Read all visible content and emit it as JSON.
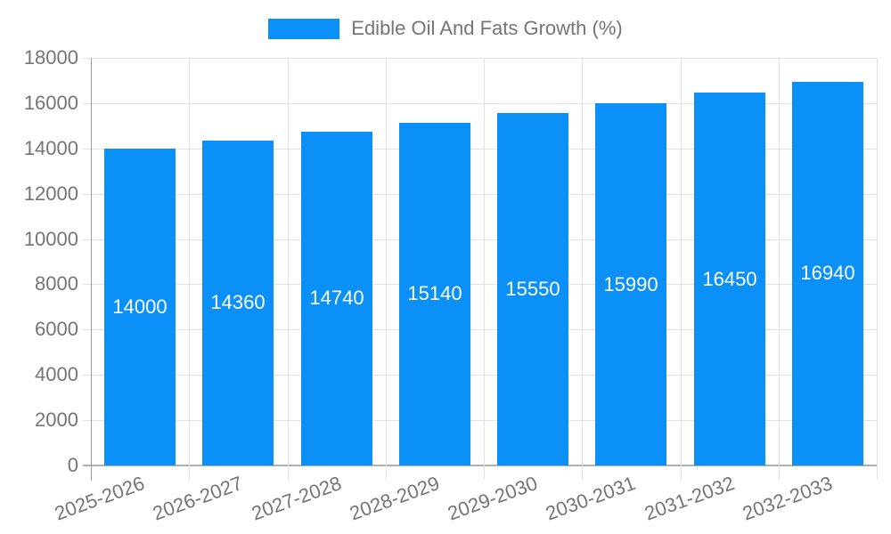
{
  "chart_data": {
    "type": "bar",
    "title": "Edible Oil And Fats Growth (%)",
    "legend": {
      "label": "Edible Oil And Fats Growth (%)",
      "position": "top-center"
    },
    "categories": [
      "2025-2026",
      "2026-2027",
      "2027-2028",
      "2028-2029",
      "2029-2030",
      "2030-2031",
      "2031-2032",
      "2032-2033"
    ],
    "series": [
      {
        "name": "Edible Oil And Fats Growth (%)",
        "values": [
          14000,
          14360,
          14740,
          15140,
          15550,
          15990,
          16450,
          16940
        ]
      }
    ],
    "value_labels_shown": true,
    "xlabel": "",
    "ylabel": "",
    "ylim": [
      0,
      18000
    ],
    "yticks": [
      0,
      2000,
      4000,
      6000,
      8000,
      10000,
      12000,
      14000,
      16000,
      18000
    ],
    "grid": "both",
    "x_tick_rotation_deg": -20,
    "colors": {
      "bar": "#0a90f6",
      "grid": "#e2e2e2",
      "axis": "#9e9e9e",
      "tick_label": "#757575",
      "value_label": "#ffffff",
      "background": "#ffffff"
    }
  }
}
